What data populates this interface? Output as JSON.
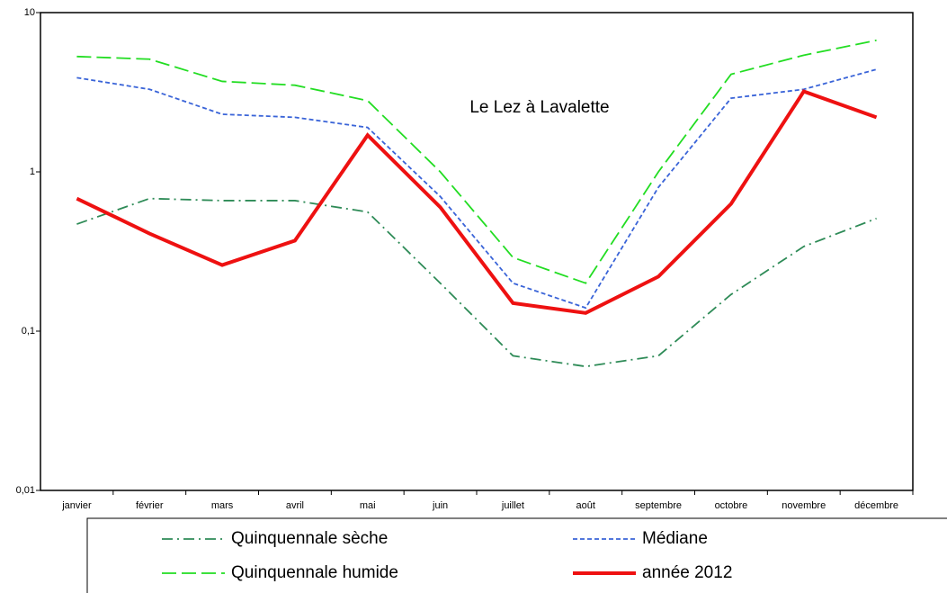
{
  "chart_data": {
    "type": "line",
    "title": "Le Lez à Lavalette",
    "categories": [
      "janvier",
      "février",
      "mars",
      "avril",
      "mai",
      "juin",
      "juillet",
      "août",
      "septembre",
      "octobre",
      "novembre",
      "décembre"
    ],
    "log_scale": true,
    "ylim": [
      0.01,
      10
    ],
    "yticks": [
      {
        "value": 0.01,
        "label": "0,01"
      },
      {
        "value": 0.1,
        "label": "0,1"
      },
      1,
      10
    ],
    "series": [
      {
        "name": "Quinquennale sèche",
        "color": "#2e8b57",
        "style": "dashdot",
        "values": [
          0.47,
          0.68,
          0.66,
          0.66,
          0.56,
          0.2,
          0.07,
          0.06,
          0.07,
          0.17,
          0.34,
          0.51
        ]
      },
      {
        "name": "Médiane",
        "color": "#3a64d8",
        "style": "dashed",
        "values": [
          3.9,
          3.3,
          2.3,
          2.2,
          1.9,
          0.7,
          0.2,
          0.14,
          0.8,
          2.9,
          3.3,
          4.4
        ]
      },
      {
        "name": "Quinquennale humide",
        "color": "#22dd22",
        "style": "longdash",
        "values": [
          5.3,
          5.1,
          3.7,
          3.5,
          2.8,
          1,
          0.29,
          0.2,
          1,
          4.1,
          5.4,
          6.7
        ]
      },
      {
        "name": "année 2012",
        "color": "#ee1111",
        "style": "solid",
        "values": [
          0.68,
          0.41,
          0.26,
          0.37,
          1.7,
          0.6,
          0.15,
          0.13,
          0.22,
          0.63,
          3.2,
          2.2
        ]
      }
    ]
  }
}
